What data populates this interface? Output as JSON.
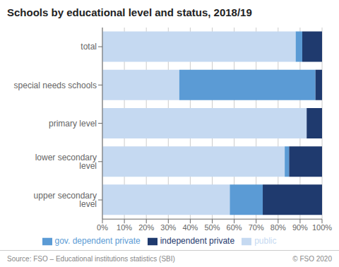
{
  "chart_data": {
    "type": "bar",
    "title": "Schools by educational level and status, 2018/19",
    "orientation": "horizontal",
    "stacked": true,
    "categories": [
      "total",
      "special needs schools",
      "primary level",
      "lower secondary level",
      "upper secondary level"
    ],
    "series": [
      {
        "name": "public",
        "color": "#c5d9f1",
        "values": [
          88,
          35,
          93,
          83,
          58
        ]
      },
      {
        "name": "gov. dependent private",
        "color": "#5b9bd5",
        "values": [
          3,
          62,
          0,
          2,
          15
        ]
      },
      {
        "name": "independent private",
        "color": "#1f3a6e",
        "values": [
          9,
          3,
          7,
          15,
          27
        ]
      }
    ],
    "xlim": [
      0,
      100
    ],
    "xticks": [
      {
        "value": 0,
        "label": "0%"
      },
      {
        "value": 10,
        "label": "10%"
      },
      {
        "value": 20,
        "label": "20%"
      },
      {
        "value": 30,
        "label": "30%"
      },
      {
        "value": 40,
        "label": "40%"
      },
      {
        "value": 50,
        "label": "50%"
      },
      {
        "value": 60,
        "label": "60%"
      },
      {
        "value": 70,
        "label": "70%"
      },
      {
        "value": 80,
        "label": "80%"
      },
      {
        "value": 90,
        "label": "90%"
      },
      {
        "value": 100,
        "label": "100%"
      }
    ],
    "grid": true,
    "legend": "bottom",
    "annotations": [
      "Source: FSO – Educational institutions statistics (SBI)",
      "© FSO 2020"
    ]
  }
}
